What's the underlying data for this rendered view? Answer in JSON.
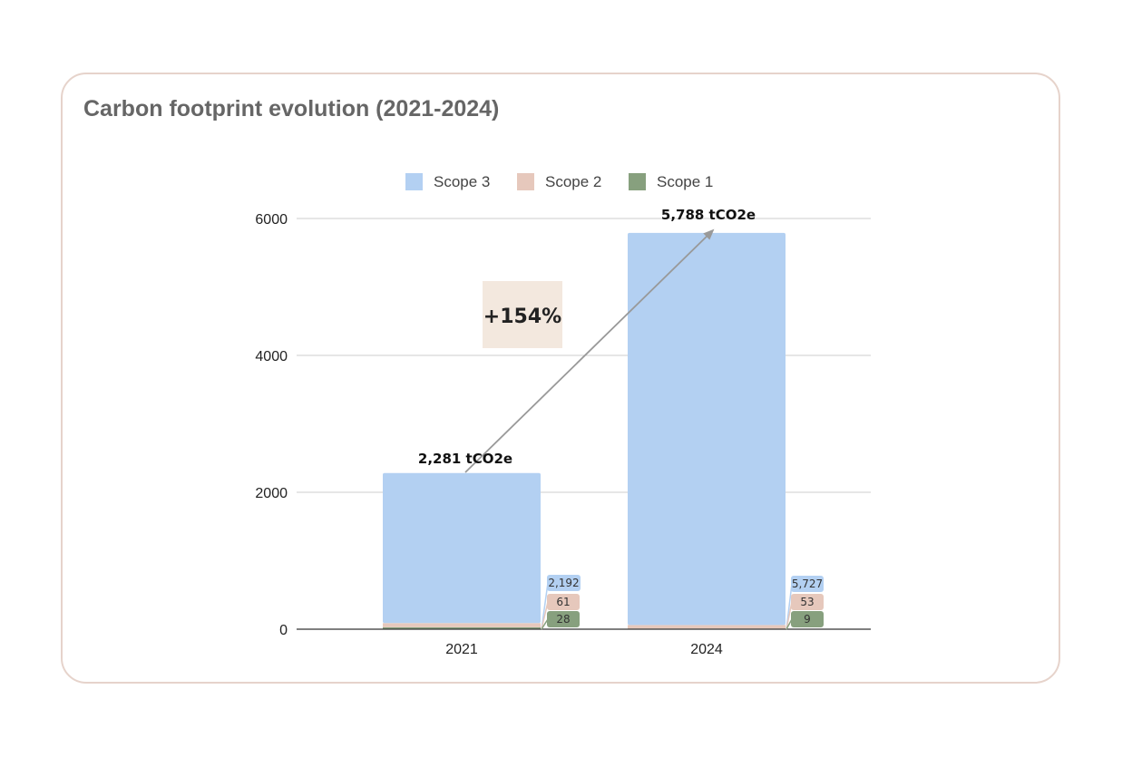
{
  "card": {
    "title": "Carbon footprint evolution (2021-2024)"
  },
  "colors": {
    "scope3": "#b3d0f2",
    "scope2": "#e6c8bc",
    "scope1": "#87a07e",
    "change_box": "#f3e8de",
    "border": "#e6d3cb"
  },
  "chart_data": {
    "type": "bar",
    "stacked": true,
    "title": "Carbon footprint evolution (2021-2024)",
    "categories": [
      "2021",
      "2024"
    ],
    "series": [
      {
        "name": "Scope 3",
        "values": [
          2192,
          5727
        ],
        "labels": [
          "2,192",
          "5,727"
        ],
        "color": "#b3d0f2"
      },
      {
        "name": "Scope 2",
        "values": [
          61,
          53
        ],
        "labels": [
          "61",
          "53"
        ],
        "color": "#e6c8bc"
      },
      {
        "name": "Scope 1",
        "values": [
          28,
          9
        ],
        "labels": [
          "28",
          "9"
        ],
        "color": "#87a07e"
      }
    ],
    "legend": [
      "Scope 3",
      "Scope 2",
      "Scope 1"
    ],
    "legend_position": "top-center",
    "totals": [
      "2,281 tCO2e",
      "5,788 tCO2e"
    ],
    "total_values": [
      2281,
      5788
    ],
    "change_label": "+154%",
    "yticks": [
      "0",
      "2000",
      "4000",
      "6000"
    ],
    "ylim": [
      0,
      6000
    ],
    "grid": true,
    "xlabel": "",
    "ylabel": ""
  }
}
